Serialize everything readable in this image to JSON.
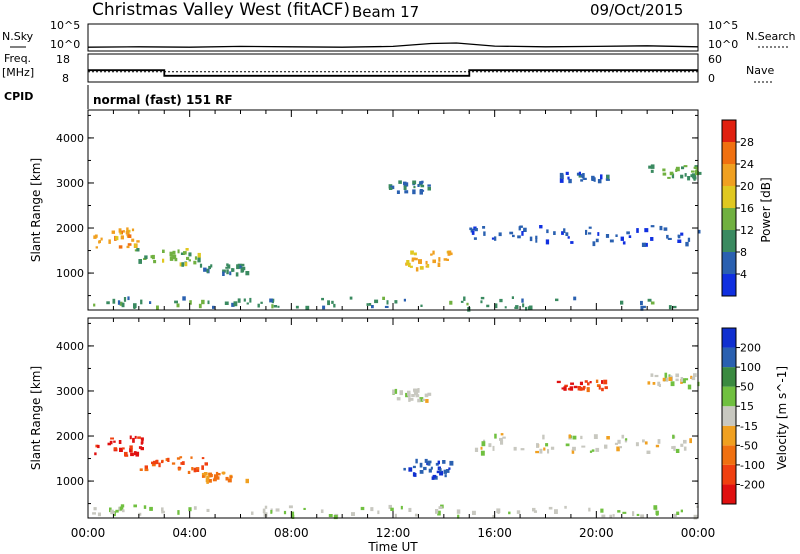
{
  "header": {
    "title": "Christmas Valley West (fitACF)",
    "beam": "Beam 17",
    "date": "09/Oct/2015"
  },
  "aux_panels": {
    "nsky_label": "N.Sky",
    "nsearch_label": "N.Search",
    "nsky_ticks": [
      "10^5",
      "10^0"
    ],
    "nsearch_ticks": [
      "10^5",
      "10^0"
    ],
    "freq_label_1": "Freq.",
    "freq_label_2": "[MHz]",
    "freq_ticks": [
      "18",
      "8"
    ],
    "nave_label": "Nave",
    "nave_ticks": [
      "60",
      "0"
    ],
    "cpid_label": "CPID",
    "cpid_text": "normal (fast) 151 RF"
  },
  "colors": {
    "power_scale": [
      "#1030e0",
      "#2a60b0",
      "#3a8a60",
      "#70b040",
      "#e0c820",
      "#f0a020",
      "#f07010",
      "#e02010"
    ],
    "velocity_scale": [
      "#e01010",
      "#f04010",
      "#f07010",
      "#f0a020",
      "#c8c8c0",
      "#70c040",
      "#3a8a40",
      "#2a60b0",
      "#1030d0"
    ]
  },
  "chart_data": [
    {
      "type": "line",
      "name": "N.Sky / N.Search",
      "x": [
        0,
        2,
        4,
        6,
        8,
        10,
        12,
        13.5,
        14.5,
        16,
        18,
        20,
        22,
        24
      ],
      "y": [
        5,
        6,
        5,
        7,
        6,
        5,
        7,
        25,
        30,
        8,
        6,
        7,
        9,
        6
      ],
      "ylim": [
        1,
        100000
      ],
      "log_scale": true
    },
    {
      "type": "line",
      "name": "Freq / Nave",
      "freq_x": [
        0,
        3,
        3,
        15,
        15,
        24
      ],
      "freq_y": [
        12.2,
        12.2,
        10.2,
        10.2,
        12.2,
        12.2
      ],
      "freq_ylim": [
        8,
        18
      ],
      "nave_level": 22,
      "nave_ylim": [
        0,
        60
      ]
    },
    {
      "type": "heatmap",
      "parameter": "Power",
      "colorbar_label": "Power [dB]",
      "colorbar_ticks": [
        "28",
        "24",
        "20",
        "16",
        "12",
        "8",
        "4"
      ],
      "colorbar_range": [
        0,
        32
      ],
      "ylabel": "Slant Range [km]",
      "yticks": [
        "4000",
        "3000",
        "2000",
        "1000"
      ],
      "ylim": [
        180,
        4620
      ],
      "xlim": [
        0,
        24
      ],
      "echo_regions": [
        {
          "t0": 0.2,
          "t1": 2.0,
          "r0": 1500,
          "r1": 1950,
          "value": 22
        },
        {
          "t0": 1.8,
          "t1": 4.6,
          "r0": 1150,
          "r1": 1500,
          "value": 14
        },
        {
          "t0": 4.4,
          "t1": 6.2,
          "r0": 950,
          "r1": 1150,
          "value": 9
        },
        {
          "t0": 12.4,
          "t1": 14.3,
          "r0": 1050,
          "r1": 1450,
          "value": 20
        },
        {
          "t0": 11.8,
          "t1": 13.4,
          "r0": 2750,
          "r1": 3000,
          "value": 7
        },
        {
          "t0": 22.0,
          "t1": 24.0,
          "r0": 3050,
          "r1": 3350,
          "value": 12
        },
        {
          "t0": 18.4,
          "t1": 20.4,
          "r0": 3000,
          "r1": 3200,
          "value": 6
        },
        {
          "t0": 15.0,
          "t1": 24.0,
          "r0": 1600,
          "r1": 2000,
          "value": 5
        },
        {
          "t0": 0.0,
          "t1": 24.0,
          "r0": 180,
          "r1": 420,
          "value": 10
        }
      ]
    },
    {
      "type": "heatmap",
      "parameter": "Velocity",
      "colorbar_label": "Velocity [m s^-1]",
      "colorbar_ticks": [
        "200",
        "100",
        "50",
        "15",
        "-15",
        "-50",
        "-100",
        "-200"
      ],
      "colorbar_range": [
        -250,
        250
      ],
      "ylabel": "Slant Range [km]",
      "yticks": [
        "4000",
        "3000",
        "2000",
        "1000"
      ],
      "ylim": [
        180,
        4620
      ],
      "xlim": [
        0,
        24
      ],
      "xlabel": "Time UT",
      "xticks": [
        "00:00",
        "04:00",
        "08:00",
        "12:00",
        "16:00",
        "20:00",
        "00:00"
      ],
      "echo_regions": [
        {
          "t0": 0.2,
          "t1": 2.2,
          "r0": 1500,
          "r1": 1950,
          "value": -200
        },
        {
          "t0": 2.0,
          "t1": 4.6,
          "r0": 1150,
          "r1": 1500,
          "value": -140
        },
        {
          "t0": 4.4,
          "t1": 6.2,
          "r0": 950,
          "r1": 1150,
          "value": -80
        },
        {
          "t0": 12.4,
          "t1": 14.3,
          "r0": 1000,
          "r1": 1450,
          "value": 200
        },
        {
          "t0": 11.8,
          "t1": 13.4,
          "r0": 2750,
          "r1": 3000,
          "value": 0
        },
        {
          "t0": 22.0,
          "t1": 24.0,
          "r0": 3050,
          "r1": 3350,
          "value": 0
        },
        {
          "t0": 18.4,
          "t1": 20.4,
          "r0": 3000,
          "r1": 3200,
          "value": -180
        },
        {
          "t0": 15.0,
          "t1": 24.0,
          "r0": 1600,
          "r1": 2000,
          "value": 0
        },
        {
          "t0": 0.0,
          "t1": 24.0,
          "r0": 180,
          "r1": 420,
          "value": 20
        }
      ]
    }
  ]
}
